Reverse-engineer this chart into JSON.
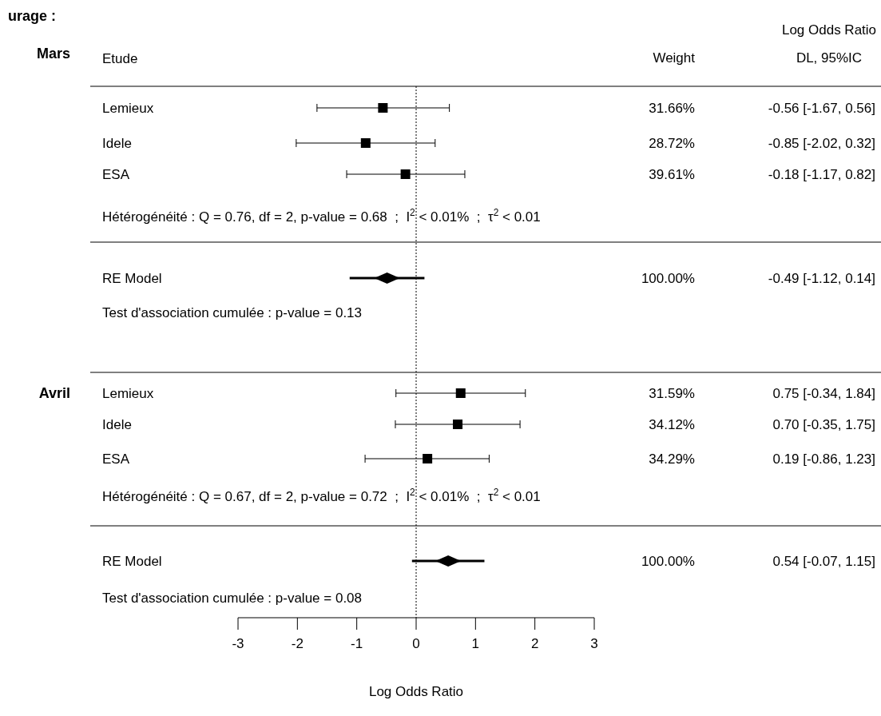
{
  "chart_data": {
    "type": "scatter",
    "title": "urage :",
    "ylabel": "Etude",
    "xlabel": "Log Odds Ratio",
    "orientation": "horizontal",
    "categories": [
      "Lemieux",
      "Idele",
      "ESA",
      "RE Model",
      "Lemieux",
      "Idele",
      "ESA",
      "RE Model"
    ],
    "xlim": [
      -3,
      3
    ],
    "xticks": [
      -3,
      -2,
      -1,
      0,
      1,
      2,
      3
    ],
    "series": [
      {
        "type": "scatter",
        "marker": "square",
        "color": "#000000",
        "values": [
          -0.56,
          -0.85,
          -0.18,
          null,
          0.75,
          0.7,
          0.19,
          null
        ],
        "errors": [
          [
            -1.67,
            0.56
          ],
          [
            -2.02,
            0.32
          ],
          [
            -1.17,
            0.82
          ],
          null,
          [
            -0.34,
            1.84
          ],
          [
            -0.35,
            1.75
          ],
          [
            -0.86,
            1.23
          ],
          null
        ]
      },
      {
        "type": "scatter",
        "marker": "diamond",
        "color": "#000000",
        "values": [
          null,
          null,
          null,
          -0.49,
          null,
          null,
          null,
          0.54
        ],
        "errors": [
          null,
          null,
          null,
          [
            -1.12,
            0.14
          ],
          null,
          null,
          null,
          [
            -0.07,
            1.15
          ]
        ]
      }
    ],
    "ref_lines": [
      {
        "axis": "x",
        "value": 0,
        "line_style": "dotted"
      }
    ],
    "annotations": [
      "Mars",
      "Avril",
      "Weight",
      "Log Odds Ratio",
      "DL, 95%IC",
      "Hétérogénéité : Q = 0.76, df = 2, p-value = 0.68  ;  I$^{2}$ < 0.01%  ;  τ$^{2}$ < 0.01",
      "Test d'association cumulée : p-value = 0.13",
      "Hétérogénéité : Q = 0.67, df = 2, p-value = 0.72  ;  I$^{2}$ < 0.01%  ;  τ$^{2}$ < 0.01",
      "Test d'association cumulée : p-value = 0.08",
      "31.66%",
      "28.72%",
      "39.61%",
      "100.00%",
      "31.59%",
      "34.12%",
      "34.29%",
      "100.00%",
      "-0.56 [-1.67, 0.56]",
      "-0.85 [-2.02, 0.32]",
      "-0.18 [-1.17, 0.82]",
      "-0.49 [-1.12, 0.14]",
      "0.75 [-0.34, 1.84]",
      "0.70 [-0.35, 1.75]",
      "0.19 [-0.86, 1.23]",
      "0.54 [-0.07, 1.15]"
    ]
  }
}
